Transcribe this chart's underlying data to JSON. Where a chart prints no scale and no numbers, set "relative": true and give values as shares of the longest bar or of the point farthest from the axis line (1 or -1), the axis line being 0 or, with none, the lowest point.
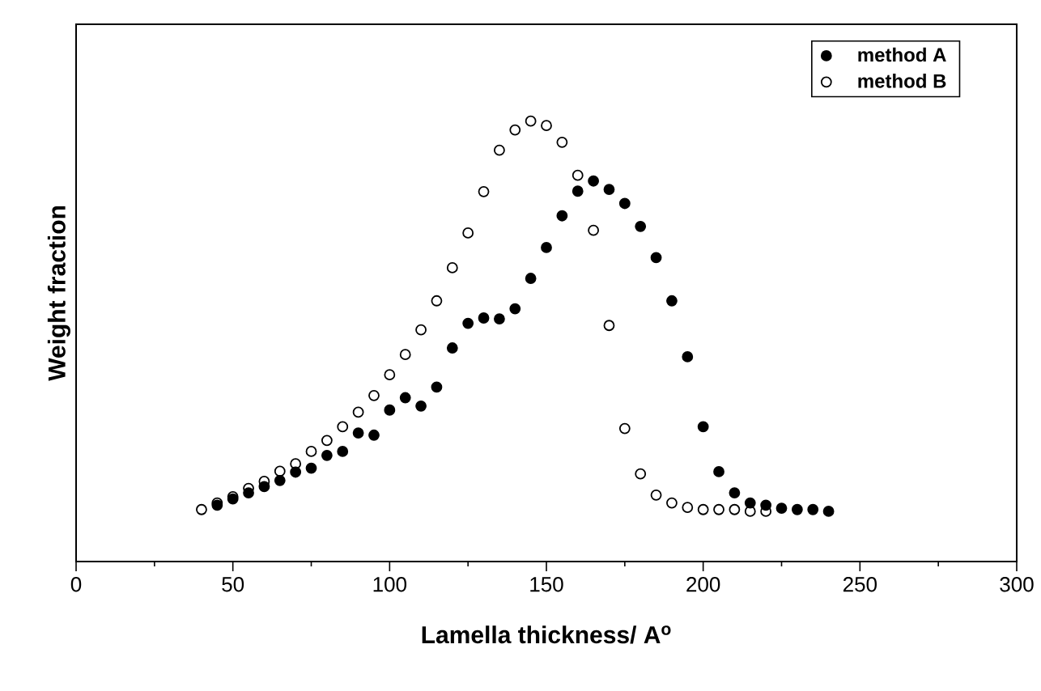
{
  "chart_data": {
    "type": "scatter",
    "relative": true,
    "xlabel": "Lamella thickness/ A$^{o}$",
    "ylabel": "Weight fraction",
    "xlim": [
      0,
      300
    ],
    "xticks": [
      0,
      50,
      100,
      150,
      200,
      250,
      300
    ],
    "tick_labels": "x",
    "legend": "top right",
    "marker": "circle",
    "grid": false,
    "series": [
      {
        "name": "method A",
        "color": "#000000",
        "x": [
          45,
          50,
          55,
          60,
          65,
          70,
          75,
          80,
          85,
          90,
          95,
          100,
          105,
          110,
          115,
          120,
          125,
          130,
          135,
          140,
          145,
          150,
          155,
          160,
          165,
          170,
          175,
          180,
          185,
          190,
          195,
          200,
          205,
          210,
          215,
          220,
          225,
          230,
          235,
          240
        ],
        "values": [
          0.128,
          0.142,
          0.156,
          0.17,
          0.184,
          0.203,
          0.212,
          0.241,
          0.25,
          0.292,
          0.287,
          0.344,
          0.372,
          0.353,
          0.396,
          0.485,
          0.541,
          0.553,
          0.551,
          0.574,
          0.643,
          0.713,
          0.785,
          0.841,
          0.864,
          0.845,
          0.813,
          0.761,
          0.69,
          0.592,
          0.465,
          0.306,
          0.204,
          0.156,
          0.133,
          0.128,
          0.121,
          0.118,
          0.118,
          0.114
        ]
      },
      {
        "name": "method B",
        "color": "#000000",
        "x": [
          40,
          45,
          50,
          55,
          60,
          65,
          70,
          75,
          80,
          85,
          90,
          95,
          100,
          105,
          110,
          115,
          120,
          125,
          130,
          135,
          140,
          145,
          150,
          155,
          160,
          165,
          170,
          175,
          180,
          185,
          190,
          195,
          200,
          205,
          210,
          215,
          220
        ],
        "values": [
          0.118,
          0.133,
          0.147,
          0.166,
          0.182,
          0.205,
          0.222,
          0.25,
          0.275,
          0.306,
          0.339,
          0.377,
          0.424,
          0.47,
          0.526,
          0.592,
          0.667,
          0.746,
          0.84,
          0.934,
          0.98,
          1,
          0.99,
          0.952,
          0.877,
          0.752,
          0.536,
          0.302,
          0.199,
          0.151,
          0.133,
          0.123,
          0.118,
          0.118,
          0.118,
          0.114,
          0.114
        ]
      }
    ]
  }
}
